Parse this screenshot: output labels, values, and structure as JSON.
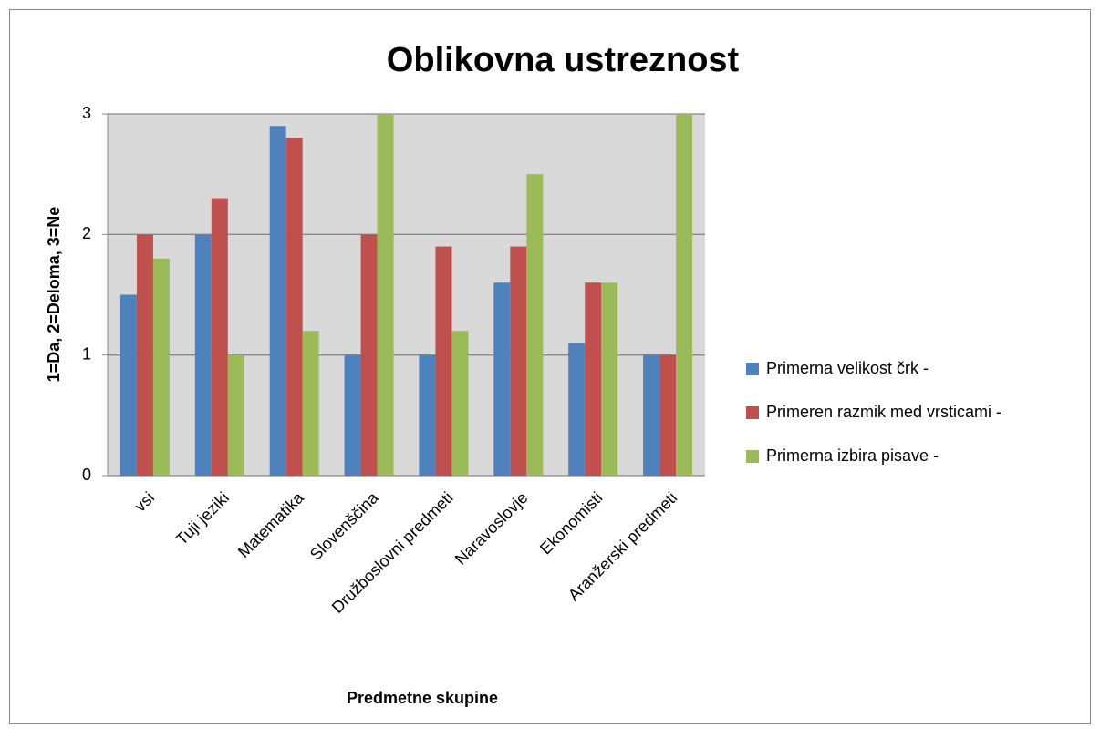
{
  "chart_data": {
    "type": "bar",
    "title": "Oblikovna ustreznost",
    "x_label": "Predmetne skupine",
    "y_label": "1=Da, 2=Deloma, 3=Ne",
    "categories": [
      "vsi",
      "Tuji jeziki",
      "Matematika",
      "Slovenščina",
      "Družboslovni predmeti",
      "Naravoslovje",
      "Ekonomisti",
      "Aranžerski predmeti"
    ],
    "series": [
      {
        "name": "Primerna velikost črk -",
        "color": "#4f81bd",
        "values": [
          1.5,
          2.0,
          2.9,
          1.0,
          1.0,
          1.6,
          1.1,
          1.0
        ]
      },
      {
        "name": "Primeren razmik med vrsticami -",
        "color": "#c0504d",
        "values": [
          2.0,
          2.3,
          2.8,
          2.0,
          1.9,
          1.9,
          1.6,
          1.0
        ]
      },
      {
        "name": "Primerna izbira pisave -",
        "color": "#9bbb59",
        "values": [
          1.8,
          1.0,
          1.2,
          3.0,
          1.2,
          2.5,
          1.6,
          3.0
        ]
      }
    ],
    "ylim": [
      0,
      3
    ],
    "yticks": [
      0,
      1,
      2,
      3
    ],
    "grid": true,
    "legend": "right"
  }
}
